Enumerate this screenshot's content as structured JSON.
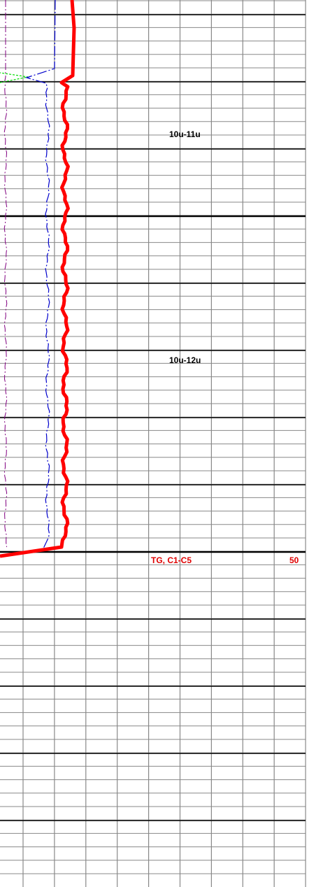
{
  "annotations": [
    "10u-11u",
    "10u-12u"
  ],
  "track_header": {
    "curve": "TG, C1-C5",
    "scale_end": "50"
  }
}
